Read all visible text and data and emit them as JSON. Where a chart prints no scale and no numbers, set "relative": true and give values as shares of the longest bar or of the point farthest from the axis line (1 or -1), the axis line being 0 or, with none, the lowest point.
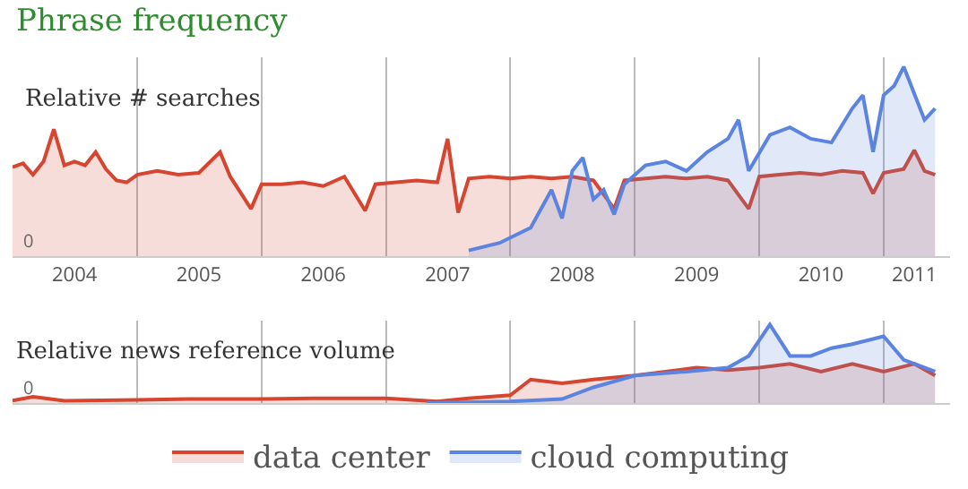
{
  "chart_data": [
    {
      "type": "area",
      "title": "Phrase frequency",
      "subtitle": "Relative # searches",
      "relative": true,
      "grid": "x",
      "xlim": [
        "2004-01-01",
        "2011-07-15"
      ],
      "xticks": [
        {
          "value": "2004-07-01",
          "label": "2004"
        },
        {
          "value": "2005-07-01",
          "label": "2005"
        },
        {
          "value": "2006-07-01",
          "label": "2006"
        },
        {
          "value": "2007-07-01",
          "label": "2007"
        },
        {
          "value": "2008-07-01",
          "label": "2008"
        },
        {
          "value": "2009-07-01",
          "label": "2009"
        },
        {
          "value": "2010-07-01",
          "label": "2010"
        },
        {
          "value": "2011-04-01",
          "label": "2011"
        }
      ],
      "annotations": [
        {
          "text": "0",
          "x": "2004-01-01",
          "y": 0
        }
      ],
      "series": [
        {
          "color": "#d5452f",
          "x": [
            "2004-01",
            "2004-02",
            "2004-03",
            "2004-04",
            "2004-05",
            "2004-06",
            "2004-07",
            "2004-08",
            "2004-09",
            "2004-10",
            "2004-11",
            "2004-12",
            "2005-01",
            "2005-03",
            "2005-05",
            "2005-07",
            "2005-09",
            "2005-10",
            "2005-12",
            "2006-01",
            "2006-03",
            "2006-05",
            "2006-07",
            "2006-09",
            "2006-11",
            "2006-12",
            "2007-02",
            "2007-04",
            "2007-06",
            "2007-07",
            "2007-08",
            "2007-09",
            "2007-11",
            "2008-01",
            "2008-03",
            "2008-05",
            "2008-07",
            "2008-09",
            "2008-11",
            "2008-12",
            "2009-02",
            "2009-04",
            "2009-06",
            "2009-08",
            "2009-10",
            "2009-12",
            "2010-01",
            "2010-03",
            "2010-05",
            "2010-07",
            "2010-09",
            "2010-11",
            "2010-12",
            "2011-01",
            "2011-03",
            "2011-04",
            "2011-05",
            "2011-06"
          ],
          "values": [
            0.47,
            0.49,
            0.43,
            0.5,
            0.67,
            0.48,
            0.5,
            0.48,
            0.55,
            0.46,
            0.4,
            0.39,
            0.43,
            0.45,
            0.43,
            0.44,
            0.55,
            0.42,
            0.25,
            0.38,
            0.38,
            0.39,
            0.37,
            0.42,
            0.24,
            0.38,
            0.39,
            0.4,
            0.39,
            0.62,
            0.23,
            0.41,
            0.42,
            0.41,
            0.42,
            0.41,
            0.42,
            0.4,
            0.25,
            0.4,
            0.41,
            0.42,
            0.41,
            0.42,
            0.4,
            0.25,
            0.42,
            0.43,
            0.44,
            0.43,
            0.45,
            0.44,
            0.33,
            0.44,
            0.46,
            0.56,
            0.45,
            0.43
          ]
        },
        {
          "color": "#5b83e0",
          "x": [
            "2007-09",
            "2007-12",
            "2008-03",
            "2008-05",
            "2008-06",
            "2008-07",
            "2008-08",
            "2008-09",
            "2008-10",
            "2008-11",
            "2008-12",
            "2009-02",
            "2009-04",
            "2009-06",
            "2009-08",
            "2009-10",
            "2009-11",
            "2009-12",
            "2010-02",
            "2010-04",
            "2010-06",
            "2010-08",
            "2010-10",
            "2010-11",
            "2010-12",
            "2011-01",
            "2011-02",
            "2011-03",
            "2011-05",
            "2011-06"
          ],
          "values": [
            0.03,
            0.07,
            0.15,
            0.35,
            0.2,
            0.45,
            0.52,
            0.3,
            0.35,
            0.22,
            0.38,
            0.48,
            0.5,
            0.45,
            0.55,
            0.62,
            0.72,
            0.45,
            0.64,
            0.68,
            0.62,
            0.6,
            0.78,
            0.85,
            0.55,
            0.85,
            0.9,
            1.0,
            0.72,
            0.78
          ]
        }
      ]
    },
    {
      "type": "area",
      "title": "Relative news reference volume",
      "relative": true,
      "grid": "x",
      "tick_labels": false,
      "legend": "bottom",
      "xlim": [
        "2004-01-01",
        "2011-07-15"
      ],
      "annotations": [
        {
          "text": "0",
          "x": "2004-01-01",
          "y": 0
        }
      ],
      "series": [
        {
          "name": "data center",
          "color": "#d5452f",
          "x": [
            "2004-01",
            "2004-03",
            "2004-06",
            "2005-01",
            "2005-06",
            "2006-01",
            "2006-06",
            "2007-01",
            "2007-06",
            "2007-09",
            "2008-01",
            "2008-03",
            "2008-06",
            "2008-09",
            "2009-01",
            "2009-04",
            "2009-07",
            "2009-10",
            "2010-01",
            "2010-04",
            "2010-07",
            "2010-10",
            "2011-01",
            "2011-04",
            "2011-06"
          ],
          "values": [
            0.03,
            0.08,
            0.03,
            0.04,
            0.05,
            0.05,
            0.06,
            0.06,
            0.02,
            0.06,
            0.1,
            0.3,
            0.25,
            0.3,
            0.35,
            0.4,
            0.45,
            0.42,
            0.45,
            0.5,
            0.4,
            0.5,
            0.4,
            0.5,
            0.35
          ]
        },
        {
          "name": "cloud computing",
          "color": "#5b83e0",
          "x": [
            "2007-05",
            "2008-01",
            "2008-06",
            "2008-09",
            "2009-01",
            "2009-06",
            "2009-10",
            "2009-12",
            "2010-02",
            "2010-04",
            "2010-06",
            "2010-08",
            "2010-10",
            "2011-01",
            "2011-03",
            "2011-06"
          ],
          "values": [
            0.0,
            0.02,
            0.05,
            0.2,
            0.35,
            0.4,
            0.45,
            0.6,
            1.0,
            0.6,
            0.6,
            0.7,
            0.75,
            0.85,
            0.55,
            0.4
          ]
        }
      ]
    }
  ]
}
